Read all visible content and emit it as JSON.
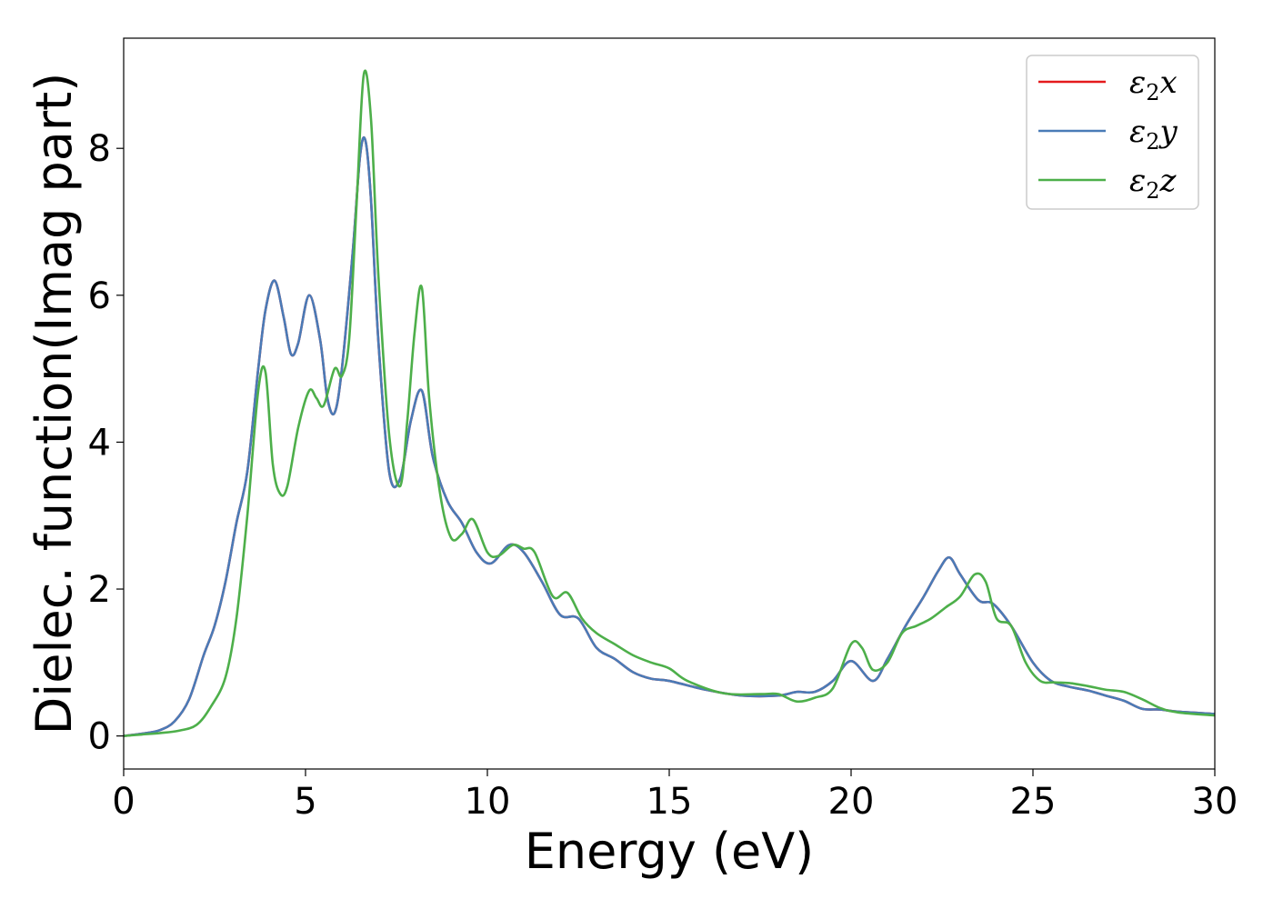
{
  "chart_data": {
    "type": "line",
    "xlabel": "Energy (eV)",
    "ylabel": "Dielec. function(Imag part)",
    "xlim": [
      0,
      30
    ],
    "ylim": [
      -0.45,
      9.5
    ],
    "xticks": [
      0,
      5,
      10,
      15,
      20,
      25,
      30
    ],
    "yticks": [
      0,
      2,
      4,
      6,
      8
    ],
    "legend_position": "top-right",
    "grid": false,
    "series": [
      {
        "name": "ε2x",
        "legend_base": "ε",
        "legend_sub": "2",
        "legend_var": "x",
        "color": "#e41a1c",
        "x": [
          0,
          0.5,
          1.0,
          1.4,
          1.8,
          2.2,
          2.5,
          2.8,
          3.1,
          3.4,
          3.7,
          3.9,
          4.15,
          4.4,
          4.6,
          4.8,
          5.1,
          5.4,
          5.6,
          5.8,
          6.0,
          6.3,
          6.5,
          6.65,
          6.8,
          7.0,
          7.3,
          7.6,
          7.9,
          8.2,
          8.5,
          8.9,
          9.3,
          9.7,
          10.1,
          10.6,
          11.0,
          11.5,
          12.0,
          12.5,
          13.0,
          13.5,
          14.0,
          14.5,
          15.0,
          16.0,
          17.0,
          18.0,
          18.5,
          19.0,
          19.5,
          20.0,
          20.6,
          21.0,
          21.5,
          22.0,
          22.4,
          22.7,
          23.0,
          23.5,
          23.9,
          24.4,
          25.0,
          25.5,
          26.0,
          26.5,
          27.0,
          27.5,
          28.0,
          28.5,
          29.0,
          30.0
        ],
        "values": [
          0.0,
          0.03,
          0.08,
          0.2,
          0.5,
          1.1,
          1.5,
          2.1,
          2.9,
          3.6,
          5.0,
          5.8,
          6.2,
          5.7,
          5.2,
          5.35,
          6.0,
          5.4,
          4.6,
          4.4,
          5.0,
          6.6,
          7.9,
          8.1,
          7.3,
          5.4,
          3.6,
          3.5,
          4.3,
          4.7,
          3.8,
          3.2,
          2.9,
          2.5,
          2.35,
          2.6,
          2.5,
          2.1,
          1.65,
          1.6,
          1.2,
          1.05,
          0.87,
          0.78,
          0.75,
          0.63,
          0.55,
          0.55,
          0.6,
          0.6,
          0.75,
          1.02,
          0.75,
          1.05,
          1.5,
          1.9,
          2.25,
          2.43,
          2.2,
          1.85,
          1.8,
          1.5,
          1.0,
          0.75,
          0.67,
          0.62,
          0.55,
          0.48,
          0.37,
          0.36,
          0.33,
          0.3
        ]
      },
      {
        "name": "ε2y",
        "legend_base": "ε",
        "legend_sub": "2",
        "legend_var": "y",
        "color": "#4a7bb7",
        "x": [
          0,
          0.5,
          1.0,
          1.4,
          1.8,
          2.2,
          2.5,
          2.8,
          3.1,
          3.4,
          3.7,
          3.9,
          4.15,
          4.4,
          4.6,
          4.8,
          5.1,
          5.4,
          5.6,
          5.8,
          6.0,
          6.3,
          6.5,
          6.65,
          6.8,
          7.0,
          7.3,
          7.6,
          7.9,
          8.2,
          8.5,
          8.9,
          9.3,
          9.7,
          10.1,
          10.6,
          11.0,
          11.5,
          12.0,
          12.5,
          13.0,
          13.5,
          14.0,
          14.5,
          15.0,
          16.0,
          17.0,
          18.0,
          18.5,
          19.0,
          19.5,
          20.0,
          20.6,
          21.0,
          21.5,
          22.0,
          22.4,
          22.7,
          23.0,
          23.5,
          23.9,
          24.4,
          25.0,
          25.5,
          26.0,
          26.5,
          27.0,
          27.5,
          28.0,
          28.5,
          29.0,
          30.0
        ],
        "values": [
          0.0,
          0.03,
          0.08,
          0.2,
          0.5,
          1.1,
          1.5,
          2.1,
          2.9,
          3.6,
          5.0,
          5.8,
          6.2,
          5.7,
          5.2,
          5.35,
          6.0,
          5.4,
          4.6,
          4.4,
          5.0,
          6.6,
          7.9,
          8.1,
          7.3,
          5.4,
          3.6,
          3.5,
          4.3,
          4.7,
          3.8,
          3.2,
          2.9,
          2.5,
          2.35,
          2.6,
          2.5,
          2.1,
          1.65,
          1.6,
          1.2,
          1.05,
          0.87,
          0.78,
          0.75,
          0.63,
          0.55,
          0.55,
          0.6,
          0.6,
          0.75,
          1.02,
          0.75,
          1.05,
          1.5,
          1.9,
          2.25,
          2.43,
          2.2,
          1.85,
          1.8,
          1.5,
          1.0,
          0.75,
          0.67,
          0.62,
          0.55,
          0.48,
          0.37,
          0.36,
          0.33,
          0.3
        ]
      },
      {
        "name": "ε2z",
        "legend_base": "ε",
        "legend_sub": "2",
        "legend_var": "z",
        "color": "#4daf4a",
        "x": [
          0,
          0.5,
          1.0,
          1.5,
          2.0,
          2.4,
          2.8,
          3.1,
          3.4,
          3.7,
          3.9,
          4.1,
          4.3,
          4.5,
          4.8,
          5.1,
          5.3,
          5.5,
          5.8,
          6.0,
          6.2,
          6.4,
          6.6,
          6.8,
          7.0,
          7.3,
          7.6,
          7.8,
          8.0,
          8.2,
          8.4,
          8.7,
          9.0,
          9.3,
          9.6,
          10.0,
          10.3,
          10.7,
          11.0,
          11.3,
          11.8,
          12.2,
          12.6,
          13.0,
          13.5,
          14.0,
          14.5,
          15.0,
          15.5,
          16.5,
          17.5,
          18.0,
          18.5,
          19.0,
          19.5,
          20.0,
          20.3,
          20.6,
          21.0,
          21.4,
          21.8,
          22.2,
          22.6,
          23.0,
          23.4,
          23.7,
          24.0,
          24.4,
          24.8,
          25.2,
          25.6,
          26.0,
          26.5,
          27.0,
          27.5,
          28.0,
          28.5,
          29.0,
          30.0
        ],
        "values": [
          0.0,
          0.02,
          0.04,
          0.07,
          0.15,
          0.4,
          0.8,
          1.6,
          3.0,
          4.7,
          4.95,
          3.7,
          3.3,
          3.4,
          4.2,
          4.7,
          4.6,
          4.5,
          5.0,
          4.9,
          5.4,
          7.2,
          9.0,
          8.4,
          6.3,
          4.1,
          3.4,
          4.3,
          5.5,
          6.1,
          4.6,
          3.3,
          2.7,
          2.75,
          2.95,
          2.5,
          2.45,
          2.6,
          2.55,
          2.5,
          1.9,
          1.95,
          1.6,
          1.4,
          1.25,
          1.1,
          1.0,
          0.92,
          0.75,
          0.58,
          0.57,
          0.57,
          0.47,
          0.52,
          0.65,
          1.25,
          1.2,
          0.9,
          1.0,
          1.4,
          1.5,
          1.6,
          1.75,
          1.9,
          2.2,
          2.1,
          1.6,
          1.5,
          1.0,
          0.75,
          0.73,
          0.72,
          0.68,
          0.63,
          0.6,
          0.5,
          0.38,
          0.32,
          0.28
        ]
      }
    ]
  }
}
